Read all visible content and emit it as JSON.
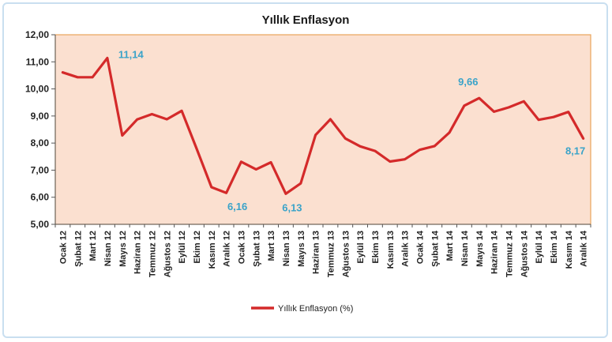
{
  "chart_data": {
    "type": "line",
    "title": "Yıllık Enflasyon",
    "xlabel": "",
    "ylabel": "",
    "ylim": [
      5,
      12
    ],
    "yticks": [
      "5,00",
      "6,00",
      "7,00",
      "8,00",
      "9,00",
      "10,00",
      "11,00",
      "12,00"
    ],
    "ytick_values": [
      5,
      6,
      7,
      8,
      9,
      10,
      11,
      12
    ],
    "categories": [
      "Ocak 12",
      "Şubat 12",
      "Mart 12",
      "Nisan 12",
      "Mayıs 12",
      "Haziran 12",
      "Temmuz 12",
      "Ağustos 12",
      "Eylül 12",
      "Ekim 12",
      "Kasım 12",
      "Aralık 12",
      "Ocak 13",
      "Şubat 13",
      "Mart 13",
      "Nisan 13",
      "Mayıs 13",
      "Haziran 13",
      "Temmuz 13",
      "Ağustos 13",
      "Eylül 13",
      "Ekim 13",
      "Kasım 13",
      "Aralık 13",
      "Ocak 14",
      "Şubat 14",
      "Mart 14",
      "Nisan 14",
      "Mayıs 14",
      "Haziran 14",
      "Temmuz 14",
      "Ağustos 14",
      "Eylül 14",
      "Ekim 14",
      "Kasım 14",
      "Aralık 14"
    ],
    "series": [
      {
        "name": "Yıllık Enflasyon (%)",
        "color": "#d42a2a",
        "values": [
          10.61,
          10.43,
          10.43,
          11.14,
          8.28,
          8.87,
          9.07,
          8.88,
          9.19,
          7.8,
          6.37,
          6.16,
          7.31,
          7.03,
          7.29,
          6.13,
          6.51,
          8.3,
          8.88,
          8.17,
          7.88,
          7.71,
          7.32,
          7.4,
          7.75,
          7.89,
          8.39,
          9.38,
          9.66,
          9.16,
          9.32,
          9.54,
          8.86,
          8.96,
          9.15,
          8.17
        ]
      }
    ],
    "annotations": [
      {
        "index": 3,
        "text": "11,14"
      },
      {
        "index": 11,
        "text": "6,16"
      },
      {
        "index": 15,
        "text": "6,13"
      },
      {
        "index": 28,
        "text": "9,66"
      },
      {
        "index": 35,
        "text": "8,17"
      }
    ],
    "plot_background": "#fbe0d0",
    "plot_border": "#e8a45a",
    "legend_position": "bottom-center",
    "grid": false
  }
}
